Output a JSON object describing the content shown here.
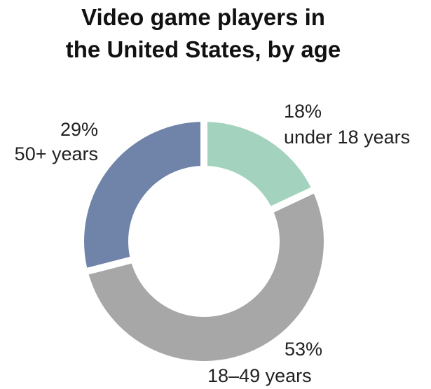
{
  "chart_data": {
    "type": "pie",
    "title_lines": [
      "Video game players in",
      "the United States, by age"
    ],
    "slices": [
      {
        "label": "under 18 years",
        "value": 18,
        "value_label": "18%",
        "color": "#a3d3bf"
      },
      {
        "label": "18–49 years",
        "value": 53,
        "value_label": "53%",
        "color": "#a7a7a7"
      },
      {
        "label": "50+ years",
        "value": 29,
        "value_label": "29%",
        "color": "#7083a8"
      }
    ],
    "legend": "none",
    "style": "donut"
  }
}
